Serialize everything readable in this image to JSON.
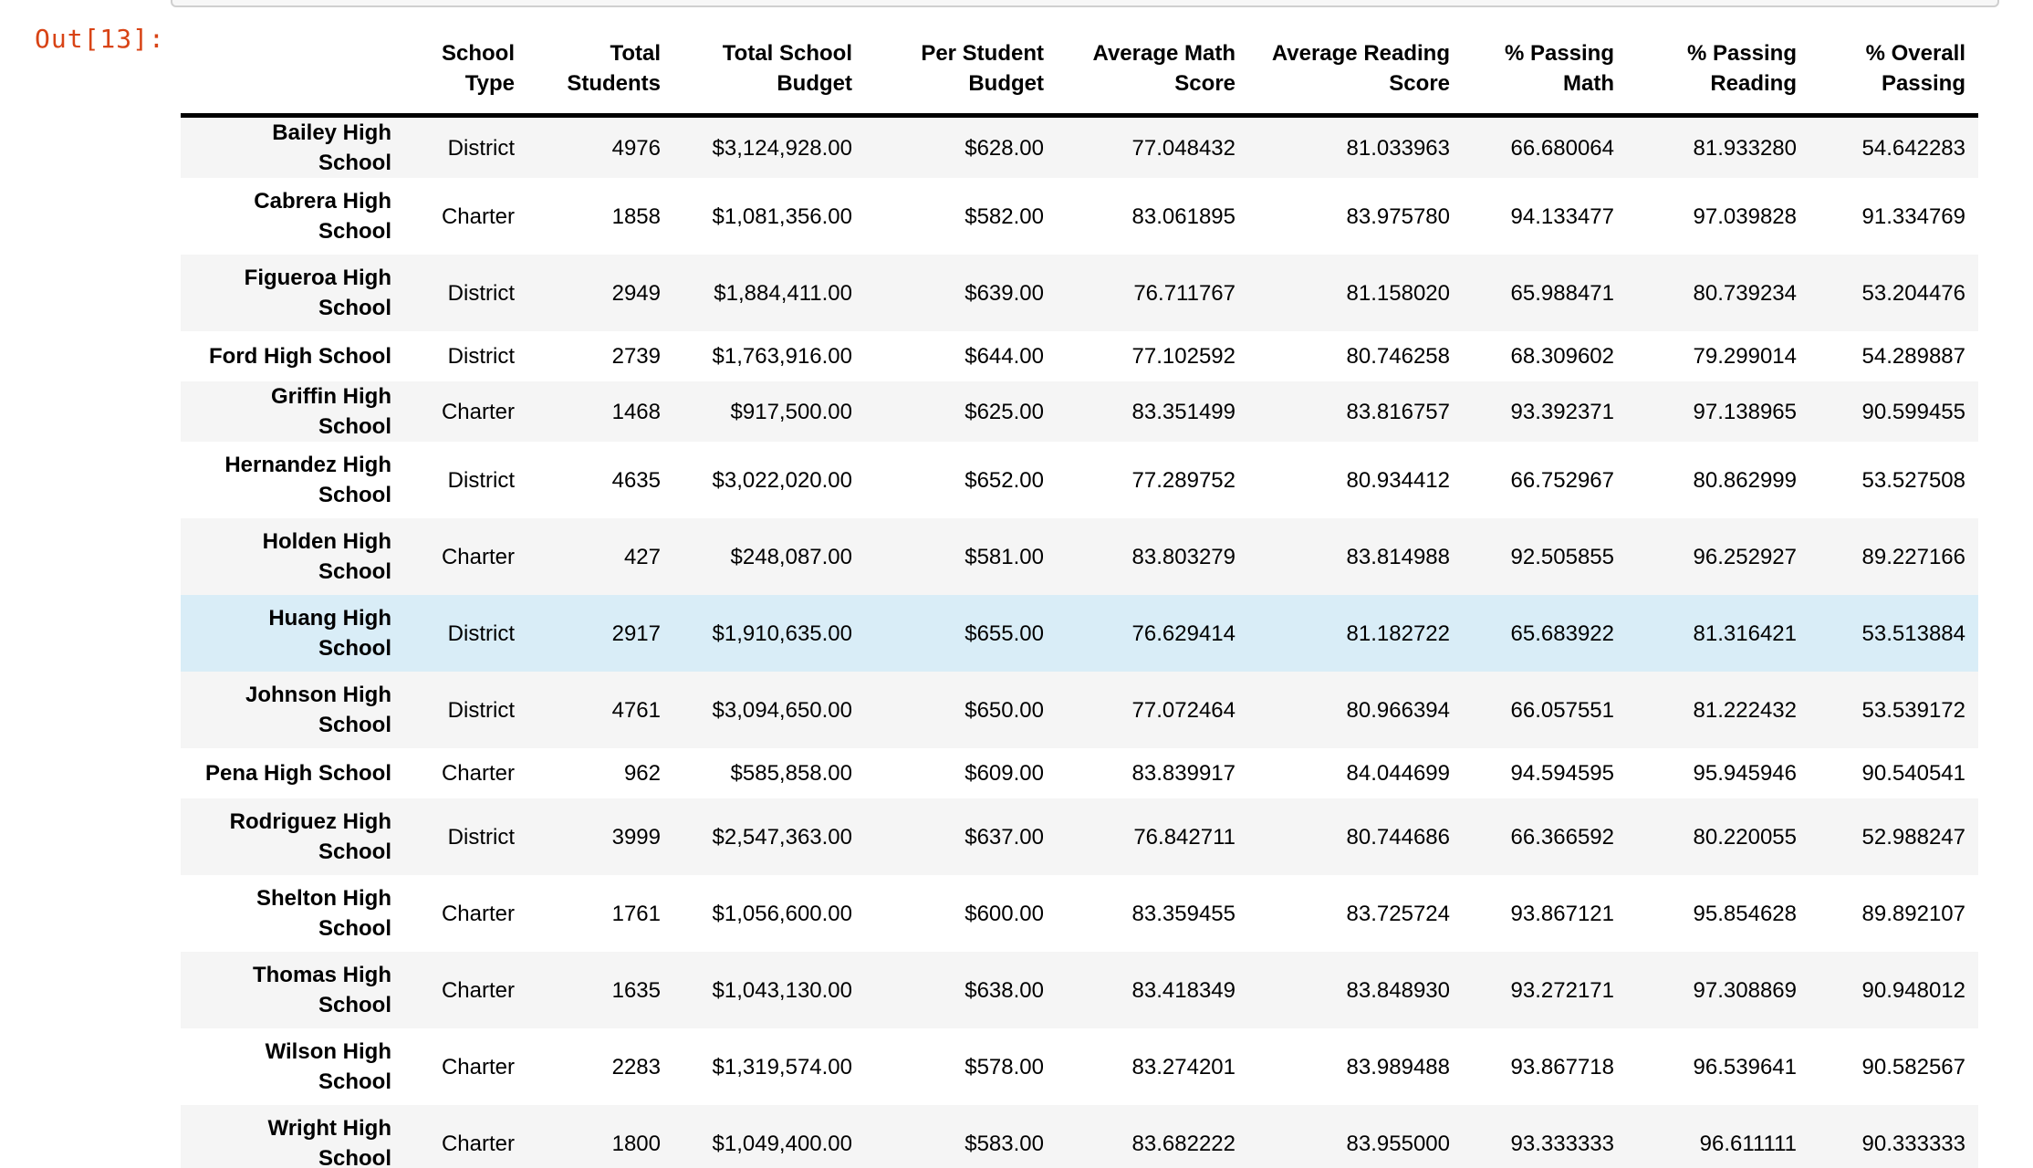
{
  "notebook": {
    "out_prompt": "Out[13]:",
    "colors": {
      "prompt_text": "#D84315",
      "row_stripe": "#f5f5f5",
      "highlight_row": "#d9edf7",
      "input_cell_border": "#cfcfcf",
      "input_cell_bg": "#f7f7f7",
      "header_rule": "#000000"
    }
  },
  "table": {
    "columns": [
      "",
      "School\nType",
      "Total\nStudents",
      "Total School\nBudget",
      "Per Student\nBudget",
      "Average Math\nScore",
      "Average Reading\nScore",
      "% Passing\nMath",
      "% Passing\nReading",
      "% Overall\nPassing"
    ],
    "rows": [
      {
        "name": "Bailey High School",
        "highlighted": false,
        "cells": [
          "District",
          "4976",
          "$3,124,928.00",
          "$628.00",
          "77.048432",
          "81.033963",
          "66.680064",
          "81.933280",
          "54.642283"
        ]
      },
      {
        "name": "Cabrera High\nSchool",
        "highlighted": false,
        "cells": [
          "Charter",
          "1858",
          "$1,081,356.00",
          "$582.00",
          "83.061895",
          "83.975780",
          "94.133477",
          "97.039828",
          "91.334769"
        ]
      },
      {
        "name": "Figueroa High\nSchool",
        "highlighted": false,
        "cells": [
          "District",
          "2949",
          "$1,884,411.00",
          "$639.00",
          "76.711767",
          "81.158020",
          "65.988471",
          "80.739234",
          "53.204476"
        ]
      },
      {
        "name": "Ford High School",
        "highlighted": false,
        "cells": [
          "District",
          "2739",
          "$1,763,916.00",
          "$644.00",
          "77.102592",
          "80.746258",
          "68.309602",
          "79.299014",
          "54.289887"
        ]
      },
      {
        "name": "Griffin High School",
        "highlighted": false,
        "cells": [
          "Charter",
          "1468",
          "$917,500.00",
          "$625.00",
          "83.351499",
          "83.816757",
          "93.392371",
          "97.138965",
          "90.599455"
        ]
      },
      {
        "name": "Hernandez High\nSchool",
        "highlighted": false,
        "cells": [
          "District",
          "4635",
          "$3,022,020.00",
          "$652.00",
          "77.289752",
          "80.934412",
          "66.752967",
          "80.862999",
          "53.527508"
        ]
      },
      {
        "name": "Holden High\nSchool",
        "highlighted": false,
        "cells": [
          "Charter",
          "427",
          "$248,087.00",
          "$581.00",
          "83.803279",
          "83.814988",
          "92.505855",
          "96.252927",
          "89.227166"
        ]
      },
      {
        "name": "Huang High\nSchool",
        "highlighted": true,
        "cells": [
          "District",
          "2917",
          "$1,910,635.00",
          "$655.00",
          "76.629414",
          "81.182722",
          "65.683922",
          "81.316421",
          "53.513884"
        ]
      },
      {
        "name": "Johnson High\nSchool",
        "highlighted": false,
        "cells": [
          "District",
          "4761",
          "$3,094,650.00",
          "$650.00",
          "77.072464",
          "80.966394",
          "66.057551",
          "81.222432",
          "53.539172"
        ]
      },
      {
        "name": "Pena High School",
        "highlighted": false,
        "cells": [
          "Charter",
          "962",
          "$585,858.00",
          "$609.00",
          "83.839917",
          "84.044699",
          "94.594595",
          "95.945946",
          "90.540541"
        ]
      },
      {
        "name": "Rodriguez High\nSchool",
        "highlighted": false,
        "cells": [
          "District",
          "3999",
          "$2,547,363.00",
          "$637.00",
          "76.842711",
          "80.744686",
          "66.366592",
          "80.220055",
          "52.988247"
        ]
      },
      {
        "name": "Shelton High\nSchool",
        "highlighted": false,
        "cells": [
          "Charter",
          "1761",
          "$1,056,600.00",
          "$600.00",
          "83.359455",
          "83.725724",
          "93.867121",
          "95.854628",
          "89.892107"
        ]
      },
      {
        "name": "Thomas High\nSchool",
        "highlighted": false,
        "cells": [
          "Charter",
          "1635",
          "$1,043,130.00",
          "$638.00",
          "83.418349",
          "83.848930",
          "93.272171",
          "97.308869",
          "90.948012"
        ]
      },
      {
        "name": "Wilson High\nSchool",
        "highlighted": false,
        "cells": [
          "Charter",
          "2283",
          "$1,319,574.00",
          "$578.00",
          "83.274201",
          "83.989488",
          "93.867718",
          "96.539641",
          "90.582567"
        ]
      },
      {
        "name": "Wright High\nSchool",
        "highlighted": false,
        "cells": [
          "Charter",
          "1800",
          "$1,049,400.00",
          "$583.00",
          "83.682222",
          "83.955000",
          "93.333333",
          "96.611111",
          "90.333333"
        ]
      }
    ]
  }
}
